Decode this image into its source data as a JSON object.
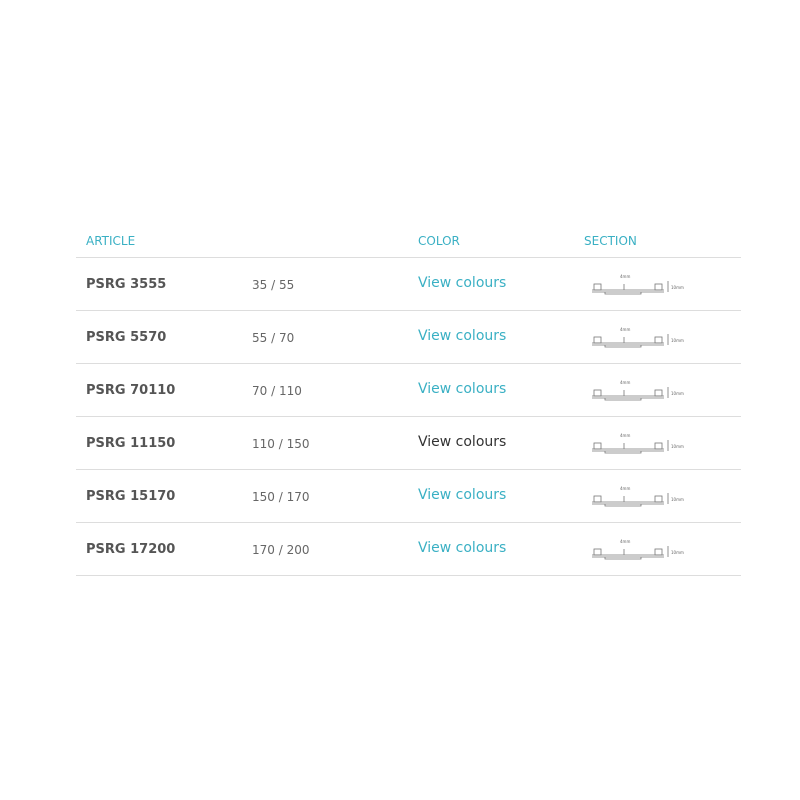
{
  "headers": {
    "article": "ARTICLE",
    "color": "COLOR",
    "section": "SECTION"
  },
  "colors": {
    "accent": "#3ab0c4",
    "hover_link": "#333333"
  },
  "diagram": {
    "width_label": "4mm",
    "height_label": "10mm"
  },
  "rows": [
    {
      "article": "PSRG 3555",
      "size": "35 / 55",
      "link": "View colours"
    },
    {
      "article": "PSRG 5570",
      "size": "55 / 70",
      "link": "View colours"
    },
    {
      "article": "PSRG 70110",
      "size": "70 / 110",
      "link": "View colours"
    },
    {
      "article": "PSRG 11150",
      "size": "110 / 150",
      "link": "View colours",
      "hovered": true
    },
    {
      "article": "PSRG 15170",
      "size": "150 / 170",
      "link": "View colours"
    },
    {
      "article": "PSRG 17200",
      "size": "170 / 200",
      "link": "View colours"
    }
  ]
}
